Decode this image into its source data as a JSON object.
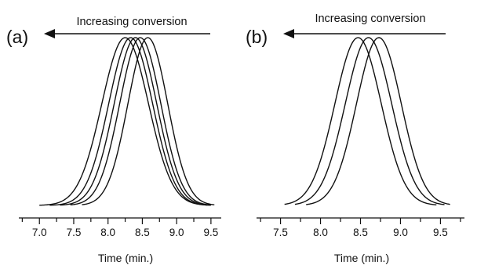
{
  "chart_data": [
    {
      "type": "line",
      "panel_label": "(a)",
      "annotation": "Increasing conversion",
      "xlabel": "Time (min.)",
      "ylabel": "",
      "xlim": [
        6.7,
        9.65
      ],
      "xticks": [
        7.0,
        7.5,
        8.0,
        8.5,
        9.0,
        9.5
      ],
      "xtick_labels": [
        "7.0",
        "7.5",
        "8.0",
        "8.5",
        "9.0",
        "9.5"
      ],
      "series": [
        {
          "peak": 8.25,
          "sigma": 0.34,
          "start": 7.0,
          "end": 9.45
        },
        {
          "peak": 8.33,
          "sigma": 0.32,
          "start": 7.15,
          "end": 9.5
        },
        {
          "peak": 8.4,
          "sigma": 0.31,
          "start": 7.3,
          "end": 9.48
        },
        {
          "peak": 8.47,
          "sigma": 0.3,
          "start": 7.45,
          "end": 9.5
        },
        {
          "peak": 8.58,
          "sigma": 0.29,
          "start": 7.62,
          "end": 9.55
        }
      ]
    },
    {
      "type": "line",
      "panel_label": "(b)",
      "annotation": "Increasing conversion",
      "xlabel": "Time (min.)",
      "ylabel": "",
      "xlim": [
        7.2,
        9.8
      ],
      "xticks": [
        7.5,
        8.0,
        8.5,
        9.0,
        9.5
      ],
      "xtick_labels": [
        "7.5",
        "8.0",
        "8.5",
        "9.0",
        "9.5"
      ],
      "series": [
        {
          "peak": 8.47,
          "sigma": 0.29,
          "start": 7.55,
          "end": 9.45
        },
        {
          "peak": 8.6,
          "sigma": 0.29,
          "start": 7.68,
          "end": 9.55
        },
        {
          "peak": 8.73,
          "sigma": 0.28,
          "start": 7.82,
          "end": 9.62
        }
      ]
    }
  ]
}
